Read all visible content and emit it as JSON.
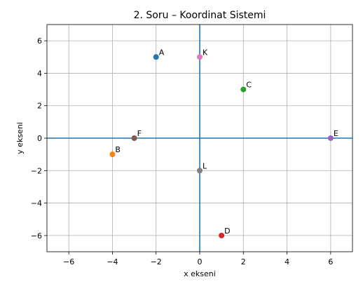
{
  "chart_data": {
    "type": "scatter",
    "title": "2. Soru – Koordinat Sistemi",
    "xlabel": "x ekseni",
    "ylabel": "y ekseni",
    "xlim": [
      -7,
      7
    ],
    "ylim": [
      -7,
      7
    ],
    "xticks": [
      -6,
      -4,
      -2,
      0,
      2,
      4,
      6
    ],
    "yticks": [
      -6,
      -4,
      -2,
      0,
      2,
      4,
      6
    ],
    "grid": true,
    "axis_line_color": "#1f77b4",
    "points": [
      {
        "label": "A",
        "x": -2,
        "y": 5,
        "color": "#1f77b4"
      },
      {
        "label": "B",
        "x": -4,
        "y": -1,
        "color": "#ff7f0e"
      },
      {
        "label": "C",
        "x": 2,
        "y": 3,
        "color": "#2ca02c"
      },
      {
        "label": "D",
        "x": 1,
        "y": -6,
        "color": "#d62728"
      },
      {
        "label": "E",
        "x": 6,
        "y": 0,
        "color": "#9467bd"
      },
      {
        "label": "F",
        "x": -3,
        "y": 0,
        "color": "#8c564b"
      },
      {
        "label": "K",
        "x": 0,
        "y": 5,
        "color": "#e377c2"
      },
      {
        "label": "L",
        "x": 0,
        "y": -2,
        "color": "#7f7f7f"
      }
    ]
  }
}
